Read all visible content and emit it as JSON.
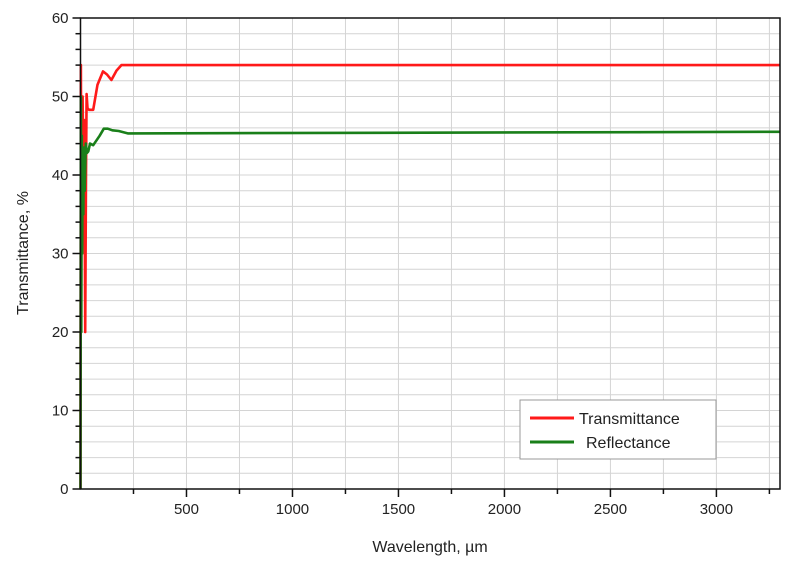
{
  "chart_data": {
    "type": "line",
    "title": "",
    "xlabel": "Wavelength, µm",
    "ylabel": "Transmittance, %",
    "xlim": [
      0,
      3300
    ],
    "ylim": [
      0,
      60
    ],
    "xticks": [
      500,
      1000,
      1500,
      2000,
      2500,
      3000
    ],
    "yticks": [
      0,
      10,
      20,
      30,
      40,
      50,
      60
    ],
    "grid": true,
    "legend_position": "bottom-right",
    "series": [
      {
        "name": "Transmittance",
        "color": "#ff1a1a",
        "x": [
          0,
          2,
          4,
          6,
          8,
          10,
          14,
          18,
          22,
          26,
          29,
          33,
          40,
          60,
          80,
          106,
          125,
          146,
          170,
          193,
          3300
        ],
        "y": [
          0,
          54,
          30,
          45,
          33,
          50,
          38,
          47,
          20,
          40,
          50.3,
          48.5,
          48.3,
          48.3,
          51.5,
          53.2,
          52.8,
          52.1,
          53.3,
          54.0,
          54.0
        ]
      },
      {
        "name": "Reflectance",
        "color": "#1a7f1a",
        "x": [
          0,
          2,
          4,
          6,
          8,
          10,
          13,
          16,
          20,
          25,
          30,
          37,
          45,
          60,
          90,
          110,
          129,
          150,
          180,
          223,
          3300
        ],
        "y": [
          0,
          50,
          20,
          45,
          30,
          42,
          35,
          43.5,
          38,
          44,
          42.8,
          43,
          44,
          43.8,
          45,
          45.9,
          45.9,
          45.7,
          45.6,
          45.3,
          45.5
        ]
      }
    ]
  }
}
